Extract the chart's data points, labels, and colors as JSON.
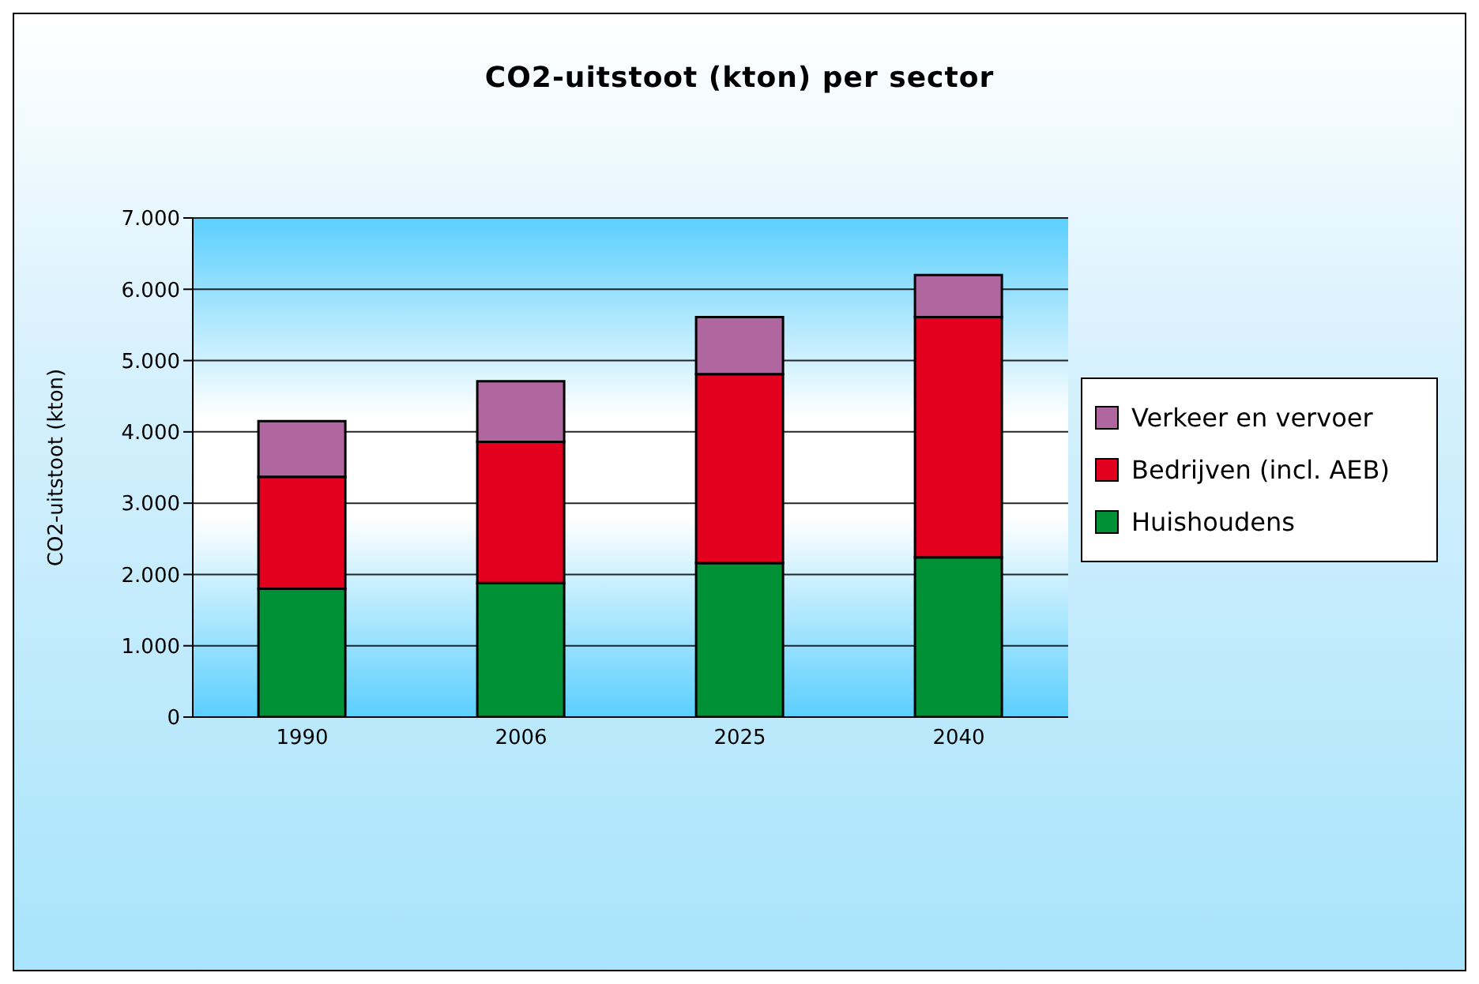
{
  "chart_data": {
    "type": "bar",
    "title": "CO2-uitstoot (kton) per sector",
    "ylabel": "CO2-uitstoot (kton)",
    "categories": [
      "1990",
      "2006",
      "2025",
      "2040"
    ],
    "series": [
      {
        "name": "Huishoudens",
        "color": "#009035",
        "values": [
          1800,
          1880,
          2160,
          2240
        ]
      },
      {
        "name": "Bedrijven (incl. AEB)",
        "color": "#e2001e",
        "values": [
          1570,
          1980,
          2650,
          3370
        ]
      },
      {
        "name": "Verkeer en vervoer",
        "color": "#b0679f",
        "values": [
          780,
          850,
          800,
          590
        ]
      }
    ],
    "stacked": true,
    "ylim": [
      0,
      7000
    ],
    "yticks": [
      {
        "value": 0,
        "label": "0"
      },
      {
        "value": 1000,
        "label": "1.000"
      },
      {
        "value": 2000,
        "label": "2.000"
      },
      {
        "value": 3000,
        "label": "3.000"
      },
      {
        "value": 4000,
        "label": "4.000"
      },
      {
        "value": 5000,
        "label": "5.000"
      },
      {
        "value": 6000,
        "label": "6.000"
      },
      {
        "value": 7000,
        "label": "7.000"
      }
    ],
    "grid": "y",
    "legend": "right"
  }
}
